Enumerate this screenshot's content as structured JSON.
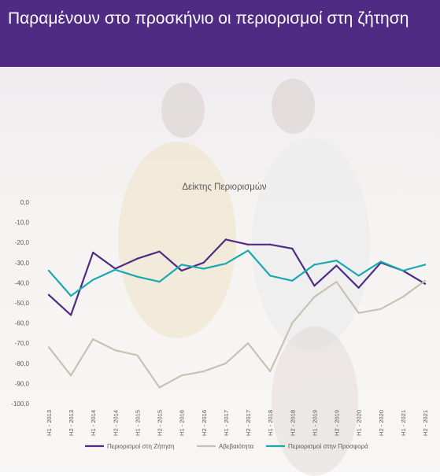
{
  "header": {
    "title": "Παραμένουν στο προσκήνιο οι περιορισμοί στη ζήτηση"
  },
  "colors": {
    "banner": "#4f2b83",
    "demand": "#4f2b83",
    "uncertainty": "#c9c2b3",
    "supply": "#1aa9b3"
  },
  "chart_data": {
    "type": "line",
    "title": "Δείκτης Περιορισμών",
    "xlabel": "",
    "ylabel": "",
    "ylim": [
      -100,
      0
    ],
    "yticks": [
      "0,0",
      "-10,0",
      "-20,0",
      "-30,0",
      "-40,0",
      "-50,0",
      "-60,0",
      "-70,0",
      "-80,0",
      "-90,0",
      "-100,0"
    ],
    "grid": false,
    "legend": "bottom",
    "categories": [
      "H1 - 2013",
      "H2 - 2013",
      "H1 - 2014",
      "H2 - 2014",
      "H1 - 2015",
      "H2 - 2015",
      "H1 - 2016",
      "H2 - 2016",
      "H1 - 2017",
      "H2 - 2017",
      "H1 - 2018",
      "H2 - 2018",
      "H1 - 2019",
      "H2 - 2019",
      "H1 - 2020",
      "H2 - 2020",
      "H1 - 2021",
      "H2 - 2021"
    ],
    "series": [
      {
        "name": "Περιορισμοί στη Ζήτηση",
        "color": "#4f2b83",
        "values": [
          -46,
          -56,
          -25,
          -33,
          -28,
          -24.5,
          -34,
          -30,
          -18.5,
          -21,
          -21,
          -23,
          -41.5,
          -31.5,
          -42.5,
          -30,
          -34,
          -40.5
        ]
      },
      {
        "name": "Αβεβαιότητα",
        "color": "#c9c2b3",
        "values": [
          -72,
          -86,
          -68,
          -73.5,
          -76,
          -92,
          -86,
          -84,
          -80,
          -70,
          -84,
          -60,
          -47,
          -39.5,
          -55,
          -53,
          -47,
          -39
        ]
      },
      {
        "name": "Περιορισμοί στην Προσφορά",
        "color": "#1aa9b3",
        "values": [
          -34,
          -46.5,
          -38.5,
          -33.5,
          -37,
          -39.5,
          -31,
          -33,
          -30.5,
          -24,
          -36.5,
          -39,
          -31,
          -29,
          -36.5,
          -29.5,
          -34,
          -31
        ]
      }
    ]
  }
}
